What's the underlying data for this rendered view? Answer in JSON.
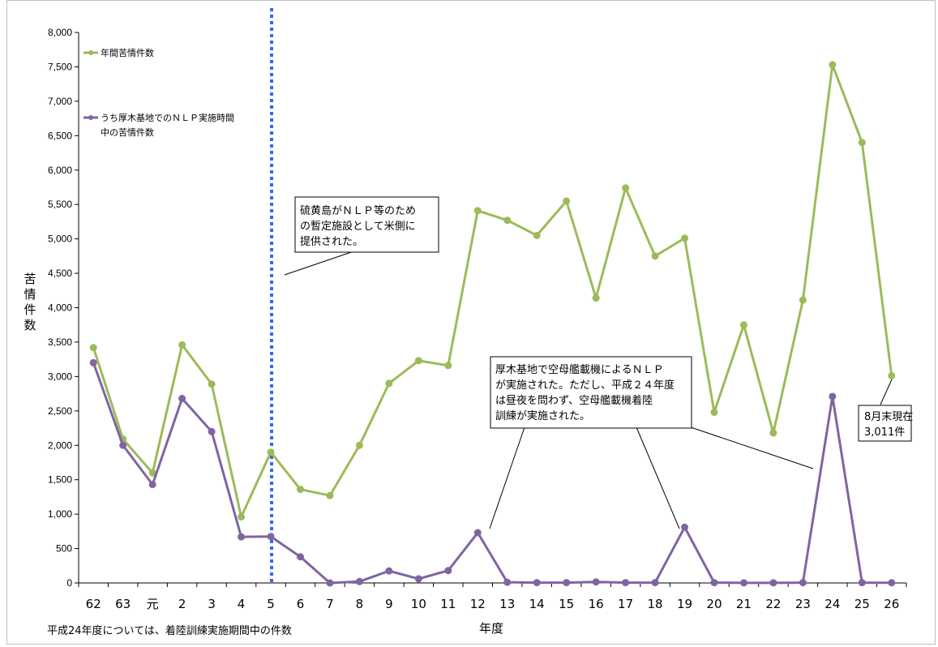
{
  "chart_data": {
    "type": "line",
    "ylabel": "苦情件数",
    "xlabel": "年度",
    "ylim": [
      0,
      8000
    ],
    "yticks": [
      "0",
      "500",
      "1,000",
      "1,500",
      "2,000",
      "2,500",
      "3,000",
      "3,500",
      "4,000",
      "4,500",
      "5,000",
      "5,500",
      "6,000",
      "6,500",
      "7,000",
      "7,500",
      "8,000"
    ],
    "categories": [
      "62",
      "63",
      "元",
      "2",
      "3",
      "4",
      "5",
      "6",
      "7",
      "8",
      "9",
      "10",
      "11",
      "12",
      "13",
      "14",
      "15",
      "16",
      "17",
      "18",
      "19",
      "20",
      "21",
      "22",
      "23",
      "24",
      "25",
      "26"
    ],
    "series": [
      {
        "name": "年間苦情件数",
        "color": "#9bbb59",
        "values": [
          3420,
          2090,
          1600,
          3460,
          2890,
          960,
          1900,
          1360,
          1270,
          2000,
          2900,
          3230,
          3160,
          5410,
          5270,
          5050,
          5550,
          4140,
          5740,
          4750,
          5010,
          2480,
          3750,
          2180,
          4110,
          7530,
          6400,
          3011
        ]
      },
      {
        "name": "うち厚木基地でのＮＬＰ実施時間中の苦情件数",
        "color": "#8064a2",
        "values": [
          3200,
          2000,
          1430,
          2680,
          2200,
          670,
          675,
          380,
          0,
          20,
          175,
          60,
          180,
          730,
          10,
          5,
          5,
          15,
          5,
          5,
          810,
          5,
          2,
          2,
          5,
          2710,
          5,
          3
        ]
      }
    ],
    "vline_after_category": "5",
    "vline_color": "#3366ff",
    "legend_placement": "top-left",
    "grid": false
  },
  "annotations": {
    "iwoto": [
      "硫黄島がＮＬＰ等のため",
      "の暫定施設として米側に",
      "提供された。"
    ],
    "atsugi": [
      "厚木基地で空母艦載機によるＮＬＰ",
      "が実施された。ただし、平成２４年度",
      "は昼夜を問わず、空母艦載機着陸",
      "訓練が実施された。"
    ],
    "current": [
      "8月末現在",
      "3,011件"
    ]
  },
  "footnote": "平成24年度については、着陸訓練実施期間中の件数"
}
